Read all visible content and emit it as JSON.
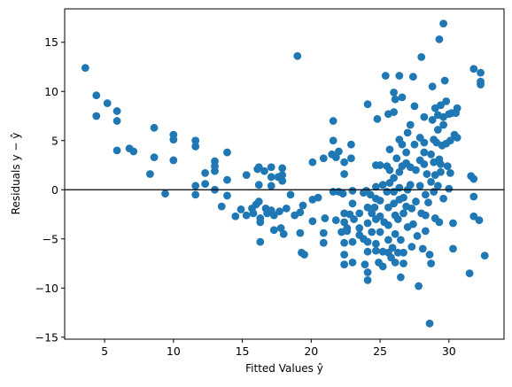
{
  "chart_data": {
    "type": "scatter",
    "title": "",
    "xlabel": "Fitted Values ŷ",
    "ylabel": "Residuals y − ŷ",
    "xlim": [
      2.1,
      34.0
    ],
    "ylim": [
      -15.2,
      18.4
    ],
    "xticks": [
      5,
      10,
      15,
      20,
      25,
      30
    ],
    "yticks": [
      -15,
      -10,
      -5,
      0,
      5,
      10,
      15
    ],
    "grid": false,
    "legend": "none",
    "reference_line": {
      "y": 0,
      "color": "#000000"
    },
    "marker_color": "#1f77b4",
    "series": [
      {
        "points": [
          [
            3.6,
            12.4
          ],
          [
            4.4,
            9.6
          ],
          [
            4.4,
            7.5
          ],
          [
            5.2,
            8.8
          ],
          [
            5.9,
            8.0
          ],
          [
            5.9,
            7.0
          ],
          [
            5.9,
            4.0
          ],
          [
            6.8,
            4.2
          ],
          [
            7.1,
            3.9
          ],
          [
            8.3,
            1.6
          ],
          [
            8.6,
            6.3
          ],
          [
            8.6,
            3.3
          ],
          [
            9.4,
            -0.4
          ],
          [
            10.0,
            5.6
          ],
          [
            10.0,
            5.1
          ],
          [
            10.0,
            3.0
          ],
          [
            11.6,
            5.0
          ],
          [
            11.6,
            4.4
          ],
          [
            11.6,
            0.4
          ],
          [
            11.6,
            -0.5
          ],
          [
            12.3,
            1.7
          ],
          [
            12.3,
            0.6
          ],
          [
            13.0,
            2.9
          ],
          [
            13.0,
            2.4
          ],
          [
            13.0,
            1.9
          ],
          [
            13.0,
            0.0
          ],
          [
            13.5,
            -1.7
          ],
          [
            13.9,
            3.8
          ],
          [
            13.9,
            1.0
          ],
          [
            13.9,
            -0.6
          ],
          [
            14.5,
            -2.7
          ],
          [
            14.9,
            -2.0
          ],
          [
            15.3,
            -2.6
          ],
          [
            15.3,
            1.5
          ],
          [
            15.7,
            -1.9
          ],
          [
            15.8,
            -2.4
          ],
          [
            16.0,
            -1.5
          ],
          [
            16.1,
            2.1
          ],
          [
            16.2,
            2.3
          ],
          [
            16.2,
            0.5
          ],
          [
            16.2,
            -1.2
          ],
          [
            16.3,
            -2.9
          ],
          [
            16.3,
            -3.3
          ],
          [
            16.3,
            -5.3
          ],
          [
            16.6,
            1.9
          ],
          [
            16.7,
            -1.9
          ],
          [
            16.8,
            -2.4
          ],
          [
            17.1,
            2.3
          ],
          [
            17.1,
            1.3
          ],
          [
            17.1,
            0.4
          ],
          [
            17.1,
            -2.1
          ],
          [
            17.3,
            -2.6
          ],
          [
            17.3,
            -4.1
          ],
          [
            17.6,
            1.3
          ],
          [
            17.7,
            -2.2
          ],
          [
            17.8,
            -3.9
          ],
          [
            17.9,
            2.2
          ],
          [
            17.9,
            1.5
          ],
          [
            17.9,
            0.9
          ],
          [
            18.0,
            -4.5
          ],
          [
            18.2,
            -1.9
          ],
          [
            18.5,
            -0.5
          ],
          [
            18.8,
            -2.6
          ],
          [
            19.0,
            13.6
          ],
          [
            19.2,
            -2.3
          ],
          [
            19.2,
            -4.4
          ],
          [
            19.3,
            -6.4
          ],
          [
            19.4,
            -1.6
          ],
          [
            19.5,
            -6.6
          ],
          [
            20.1,
            2.8
          ],
          [
            20.1,
            -1.0
          ],
          [
            20.1,
            -3.2
          ],
          [
            20.5,
            -0.8
          ],
          [
            20.9,
            3.2
          ],
          [
            20.9,
            -4.4
          ],
          [
            20.9,
            -5.4
          ],
          [
            21.0,
            -2.9
          ],
          [
            21.5,
            3.6
          ],
          [
            21.6,
            7.0
          ],
          [
            21.6,
            5.0
          ],
          [
            21.6,
            -0.2
          ],
          [
            21.8,
            -3.1
          ],
          [
            21.8,
            3.3
          ],
          [
            22.0,
            3.9
          ],
          [
            22.0,
            -0.2
          ],
          [
            22.2,
            -4.3
          ],
          [
            22.3,
            -0.4
          ],
          [
            22.4,
            2.8
          ],
          [
            22.4,
            1.6
          ],
          [
            22.4,
            -2.4
          ],
          [
            22.4,
            -3.3
          ],
          [
            22.4,
            -5.4
          ],
          [
            22.4,
            -6.6
          ],
          [
            22.4,
            -7.6
          ],
          [
            22.6,
            -3.9
          ],
          [
            22.6,
            -4.2
          ],
          [
            22.8,
            -2.5
          ],
          [
            22.9,
            4.6
          ],
          [
            22.9,
            3.2
          ],
          [
            23.0,
            -0.1
          ],
          [
            23.0,
            -1.4
          ],
          [
            23.0,
            -5.3
          ],
          [
            23.0,
            -7.4
          ],
          [
            23.1,
            -3.0
          ],
          [
            23.5,
            -2.4
          ],
          [
            23.5,
            -3.9
          ],
          [
            23.5,
            -4.6
          ],
          [
            23.8,
            -0.3
          ],
          [
            23.8,
            -5.0
          ],
          [
            23.9,
            -7.6
          ],
          [
            24.0,
            -0.1
          ],
          [
            24.1,
            8.7
          ],
          [
            24.1,
            -1.8
          ],
          [
            24.1,
            -3.4
          ],
          [
            24.1,
            -5.3
          ],
          [
            24.1,
            -6.3
          ],
          [
            24.1,
            -8.4
          ],
          [
            24.1,
            -9.2
          ],
          [
            24.3,
            -0.5
          ],
          [
            24.4,
            -2.4
          ],
          [
            24.4,
            -4.3
          ],
          [
            24.6,
            -1.8
          ],
          [
            24.7,
            2.5
          ],
          [
            24.7,
            0.3
          ],
          [
            24.7,
            -0.9
          ],
          [
            24.7,
            -3.0
          ],
          [
            24.7,
            -5.5
          ],
          [
            24.7,
            -6.2
          ],
          [
            24.8,
            7.2
          ],
          [
            24.9,
            -7.4
          ],
          [
            25.0,
            2.5
          ],
          [
            25.0,
            -1.1
          ],
          [
            25.0,
            -2.7
          ],
          [
            25.0,
            -4.3
          ],
          [
            25.2,
            0.5
          ],
          [
            25.2,
            -6.3
          ],
          [
            25.2,
            -7.8
          ],
          [
            25.3,
            -3.3
          ],
          [
            25.4,
            11.6
          ],
          [
            25.5,
            2.4
          ],
          [
            25.5,
            -0.2
          ],
          [
            25.6,
            7.7
          ],
          [
            25.6,
            -1.8
          ],
          [
            25.6,
            -3.6
          ],
          [
            25.6,
            -5.1
          ],
          [
            25.6,
            -6.4
          ],
          [
            25.7,
            4.1
          ],
          [
            25.7,
            2.0
          ],
          [
            25.7,
            0.7
          ],
          [
            25.8,
            -6.9
          ],
          [
            25.9,
            -5.9
          ],
          [
            26.0,
            9.9
          ],
          [
            26.0,
            7.9
          ],
          [
            26.0,
            1.2
          ],
          [
            26.0,
            -0.2
          ],
          [
            26.0,
            -1.4
          ],
          [
            26.1,
            9.2
          ],
          [
            26.1,
            -2.6
          ],
          [
            26.1,
            -4.5
          ],
          [
            26.1,
            -7.4
          ],
          [
            26.2,
            3.2
          ],
          [
            26.3,
            -3.0
          ],
          [
            26.3,
            -6.4
          ],
          [
            26.4,
            11.6
          ],
          [
            26.4,
            5.1
          ],
          [
            26.4,
            1.8
          ],
          [
            26.4,
            0.2
          ],
          [
            26.4,
            -1.0
          ],
          [
            26.5,
            -5.1
          ],
          [
            26.5,
            -8.9
          ],
          [
            26.6,
            9.4
          ],
          [
            26.6,
            4.6
          ],
          [
            26.6,
            2.4
          ],
          [
            26.7,
            -0.8
          ],
          [
            26.7,
            -2.4
          ],
          [
            26.7,
            -6.4
          ],
          [
            26.7,
            -7.5
          ],
          [
            26.9,
            3.8
          ],
          [
            26.9,
            2.7
          ],
          [
            26.9,
            -1.7
          ],
          [
            27.0,
            5.8
          ],
          [
            27.0,
            0.0
          ],
          [
            27.0,
            -3.8
          ],
          [
            27.2,
            6.6
          ],
          [
            27.2,
            2.3
          ],
          [
            27.2,
            0.5
          ],
          [
            27.3,
            -1.9
          ],
          [
            27.3,
            -5.8
          ],
          [
            27.4,
            11.5
          ],
          [
            27.4,
            -3.5
          ],
          [
            27.5,
            8.5
          ],
          [
            27.5,
            4.6
          ],
          [
            27.6,
            2.0
          ],
          [
            27.6,
            -1.2
          ],
          [
            27.7,
            -4.7
          ],
          [
            27.8,
            -9.8
          ],
          [
            27.9,
            5.3
          ],
          [
            27.9,
            3.0
          ],
          [
            27.9,
            0.4
          ],
          [
            28.0,
            13.5
          ],
          [
            28.0,
            -2.4
          ],
          [
            28.1,
            -6.0
          ],
          [
            28.2,
            7.4
          ],
          [
            28.2,
            4.8
          ],
          [
            28.2,
            3.8
          ],
          [
            28.2,
            2.6
          ],
          [
            28.3,
            -0.5
          ],
          [
            28.3,
            -2.6
          ],
          [
            28.3,
            -4.2
          ],
          [
            28.4,
            1.6
          ],
          [
            28.5,
            -1.3
          ],
          [
            28.6,
            -6.6
          ],
          [
            28.6,
            -13.6
          ],
          [
            28.7,
            3.6
          ],
          [
            28.7,
            0.8
          ],
          [
            28.7,
            -7.5
          ],
          [
            28.8,
            10.5
          ],
          [
            28.8,
            7.1
          ],
          [
            28.9,
            5.1
          ],
          [
            28.9,
            2.8
          ],
          [
            28.9,
            -0.2
          ],
          [
            29.0,
            -2.9
          ],
          [
            29.0,
            8.3
          ],
          [
            29.0,
            1.5
          ],
          [
            29.1,
            4.8
          ],
          [
            29.2,
            7.6
          ],
          [
            29.2,
            6.1
          ],
          [
            29.2,
            0.4
          ],
          [
            29.3,
            15.3
          ],
          [
            29.3,
            3.1
          ],
          [
            29.3,
            -3.3
          ],
          [
            29.4,
            8.6
          ],
          [
            29.4,
            2.6
          ],
          [
            29.4,
            1.8
          ],
          [
            29.5,
            4.5
          ],
          [
            29.6,
            16.9
          ],
          [
            29.6,
            7.4
          ],
          [
            29.6,
            6.6
          ],
          [
            29.6,
            -0.9
          ],
          [
            29.7,
            11.1
          ],
          [
            29.8,
            9.0
          ],
          [
            29.8,
            4.7
          ],
          [
            29.9,
            2.4
          ],
          [
            30.0,
            7.7
          ],
          [
            30.0,
            0.1
          ],
          [
            30.1,
            5.0
          ],
          [
            30.1,
            1.7
          ],
          [
            30.2,
            7.8
          ],
          [
            30.3,
            -3.4
          ],
          [
            30.3,
            -6.0
          ],
          [
            30.4,
            5.6
          ],
          [
            30.5,
            7.8
          ],
          [
            30.6,
            8.3
          ],
          [
            30.6,
            5.3
          ],
          [
            31.5,
            -8.5
          ],
          [
            31.6,
            1.4
          ],
          [
            31.8,
            12.3
          ],
          [
            31.8,
            1.1
          ],
          [
            31.8,
            -0.7
          ],
          [
            31.8,
            -2.7
          ],
          [
            32.2,
            -3.1
          ],
          [
            32.3,
            11.9
          ],
          [
            32.3,
            11.0
          ],
          [
            32.3,
            10.7
          ],
          [
            32.6,
            -6.7
          ]
        ]
      }
    ]
  }
}
